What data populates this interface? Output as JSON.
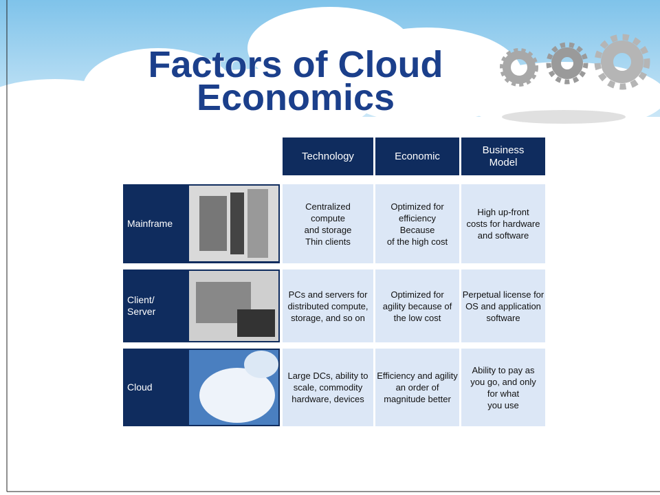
{
  "title": {
    "lines": [
      "Factors of Cloud",
      "Economics"
    ]
  },
  "table": {
    "headers": [
      [
        "Technology"
      ],
      [
        "Economic"
      ],
      [
        "Business",
        "Model"
      ]
    ],
    "rows": [
      {
        "label": [
          "Mainframe"
        ],
        "cells": [
          [
            "Centralized",
            "compute",
            "and storage",
            "Thin clients"
          ],
          [
            "Optimized for",
            "efficiency",
            "Because",
            "of the high cost"
          ],
          [
            "High up-front",
            "costs for hardware",
            "and software"
          ]
        ]
      },
      {
        "label": [
          "Client/",
          "Server"
        ],
        "cells": [
          [
            "PCs and servers for",
            "distributed compute,",
            "storage, and so on"
          ],
          [
            "Optimized for",
            "agility because of",
            "the low cost"
          ],
          [
            "Perpetual license for",
            "OS and application",
            "software"
          ]
        ]
      },
      {
        "label": [
          "Cloud"
        ],
        "cells": [
          [
            "Large DCs, ability to",
            "scale, commodity",
            "hardware, devices"
          ],
          [
            "Efficiency and agility",
            "an order of",
            "magnitude better"
          ],
          [
            "Ability to pay as",
            "you go, and only",
            "for what",
            "you use"
          ]
        ]
      }
    ]
  }
}
